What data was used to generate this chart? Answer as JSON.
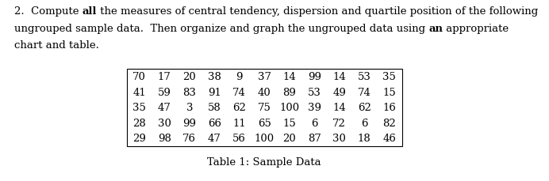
{
  "line1_parts": [
    {
      "text": "2.  Compute ",
      "bold": false
    },
    {
      "text": "all",
      "bold": true
    },
    {
      "text": " the measures of central tendency, dispersion and quartile position of the following",
      "bold": false
    }
  ],
  "line2_parts": [
    {
      "text": "ungrouped sample data.  Then organize and graph the ungrouped data using ",
      "bold": false
    },
    {
      "text": "an",
      "bold": true
    },
    {
      "text": " appropriate",
      "bold": false
    }
  ],
  "line3_parts": [
    {
      "text": "chart and table.",
      "bold": false
    }
  ],
  "table_rows": [
    [
      70,
      17,
      20,
      38,
      9,
      37,
      14,
      99,
      14,
      53,
      35
    ],
    [
      41,
      59,
      83,
      91,
      74,
      40,
      89,
      53,
      49,
      74,
      15
    ],
    [
      35,
      47,
      3,
      58,
      62,
      75,
      100,
      39,
      14,
      62,
      16
    ],
    [
      28,
      30,
      99,
      66,
      11,
      65,
      15,
      6,
      72,
      6,
      82
    ],
    [
      29,
      98,
      76,
      47,
      56,
      100,
      20,
      87,
      30,
      18,
      46
    ]
  ],
  "caption": "Table 1: Sample Data",
  "background_color": "#ffffff",
  "text_color": "#000000",
  "font_size": 9.5,
  "font_size_table": 9.5,
  "font_size_caption": 9.5,
  "fig_width": 6.92,
  "fig_height": 2.3,
  "dpi": 100
}
